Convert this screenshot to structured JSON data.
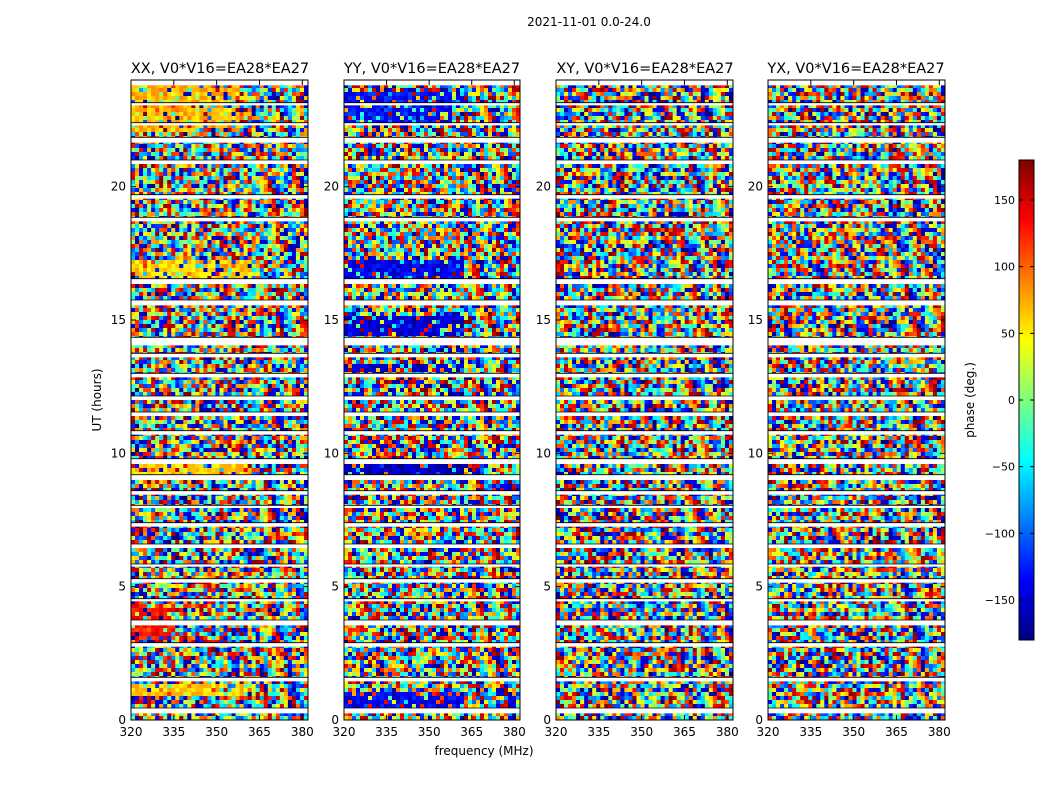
{
  "suptitle": "2021-11-01 0.0-24.0",
  "ylabel": "UT (hours)",
  "xlabel": "frequency (MHz)",
  "colorbar": {
    "label": "phase (deg.)",
    "range": [
      -180,
      180
    ],
    "ticks": [
      150,
      100,
      50,
      0,
      -50,
      -100,
      -150
    ],
    "tick_labels": [
      "150",
      "100",
      "50",
      "0",
      "−50",
      "−100",
      "−150"
    ],
    "colormap": "jet",
    "colors": [
      "#00007f",
      "#0000ff",
      "#007fff",
      "#00ffff",
      "#7fff7f",
      "#ffff00",
      "#ff7f00",
      "#ff0000",
      "#7f0000"
    ]
  },
  "chart_data": [
    {
      "type": "heatmap",
      "title": "XX, V0*V16=EA28*EA27",
      "xlabel": "",
      "ylabel": "UT (hours)",
      "xlim": [
        320,
        382
      ],
      "ylim": [
        0,
        24
      ],
      "xticks": [
        320,
        335,
        350,
        365,
        380
      ],
      "xtick_labels": [
        "320",
        "335",
        "350",
        "365",
        "380"
      ],
      "yticks": [
        0,
        5,
        10,
        15,
        20
      ],
      "ytick_labels": [
        "0",
        "5",
        "10",
        "15",
        "20"
      ],
      "value": "phase (deg.)",
      "tints": [
        {
          "t0": 0.9,
          "t1": 1.3,
          "f0": 320,
          "f1": 360,
          "phase": 60
        },
        {
          "t0": 3.0,
          "t1": 4.4,
          "f0": 320,
          "f1": 335,
          "phase": 130
        },
        {
          "t0": 16.5,
          "t1": 17.2,
          "f0": 320,
          "f1": 362,
          "phase": 60
        },
        {
          "t0": 22.0,
          "t1": 23.8,
          "f0": 320,
          "f1": 358,
          "phase": 70
        },
        {
          "t0": 9.2,
          "t1": 9.6,
          "f0": 320,
          "f1": 362,
          "phase": 60
        }
      ]
    },
    {
      "type": "heatmap",
      "title": "YY, V0*V16=EA28*EA27",
      "xlabel": "frequency (MHz)",
      "ylabel": "",
      "xlim": [
        320,
        382
      ],
      "ylim": [
        0,
        24
      ],
      "xticks": [
        320,
        335,
        350,
        365,
        380
      ],
      "xtick_labels": [
        "320",
        "335",
        "350",
        "365",
        "380"
      ],
      "yticks": [
        0,
        5,
        10,
        15,
        20
      ],
      "ytick_labels": [
        "0",
        "5",
        "10",
        "15",
        "20"
      ],
      "value": "phase (deg.)",
      "tints": [
        {
          "t0": 0.5,
          "t1": 1.0,
          "f0": 320,
          "f1": 362,
          "phase": -140
        },
        {
          "t0": 16.5,
          "t1": 17.2,
          "f0": 320,
          "f1": 362,
          "phase": -140
        },
        {
          "t0": 13.0,
          "t1": 13.4,
          "f0": 320,
          "f1": 362,
          "phase": -150
        },
        {
          "t0": 14.4,
          "t1": 15.2,
          "f0": 320,
          "f1": 362,
          "phase": -150
        },
        {
          "t0": 22.4,
          "t1": 23.6,
          "f0": 320,
          "f1": 358,
          "phase": -130
        },
        {
          "t0": 9.2,
          "t1": 9.6,
          "f0": 320,
          "f1": 362,
          "phase": -160
        }
      ]
    },
    {
      "type": "heatmap",
      "title": "XY, V0*V16=EA28*EA27",
      "xlabel": "",
      "ylabel": "",
      "xlim": [
        320,
        382
      ],
      "ylim": [
        0,
        24
      ],
      "xticks": [
        320,
        335,
        350,
        365,
        380
      ],
      "xtick_labels": [
        "320",
        "335",
        "350",
        "365",
        "380"
      ],
      "yticks": [
        0,
        5,
        10,
        15,
        20
      ],
      "ytick_labels": [
        "0",
        "5",
        "10",
        "15",
        "20"
      ],
      "value": "phase (deg.)",
      "tints": []
    },
    {
      "type": "heatmap",
      "title": "YX, V0*V16=EA28*EA27",
      "xlabel": "",
      "ylabel": "",
      "xlim": [
        320,
        382
      ],
      "ylim": [
        0,
        24
      ],
      "xticks": [
        320,
        335,
        350,
        365,
        380
      ],
      "xtick_labels": [
        "320",
        "335",
        "350",
        "365",
        "380"
      ],
      "yticks": [
        0,
        5,
        10,
        15,
        20
      ],
      "ytick_labels": [
        "0",
        "5",
        "10",
        "15",
        "20"
      ],
      "value": "phase (deg.)",
      "tints": []
    }
  ],
  "data_gaps_hours": [
    [
      0.25,
      0.45
    ],
    [
      1.45,
      1.6
    ],
    [
      2.75,
      2.9
    ],
    [
      3.55,
      3.75
    ],
    [
      4.45,
      4.55
    ],
    [
      5.15,
      5.3
    ],
    [
      5.75,
      5.85
    ],
    [
      6.45,
      6.6
    ],
    [
      7.25,
      7.4
    ],
    [
      7.95,
      8.05
    ],
    [
      8.45,
      8.6
    ],
    [
      9.0,
      9.2
    ],
    [
      9.6,
      9.8
    ],
    [
      10.7,
      10.85
    ],
    [
      11.4,
      11.55
    ],
    [
      12.0,
      12.15
    ],
    [
      12.85,
      13.0
    ],
    [
      13.6,
      13.75
    ],
    [
      14.05,
      14.35
    ],
    [
      15.55,
      15.75
    ],
    [
      16.35,
      16.55
    ],
    [
      18.7,
      18.85
    ],
    [
      19.55,
      19.7
    ],
    [
      20.85,
      21.0
    ],
    [
      21.65,
      21.85
    ],
    [
      22.3,
      22.4
    ],
    [
      23.05,
      23.15
    ],
    [
      23.8,
      24.0
    ]
  ]
}
